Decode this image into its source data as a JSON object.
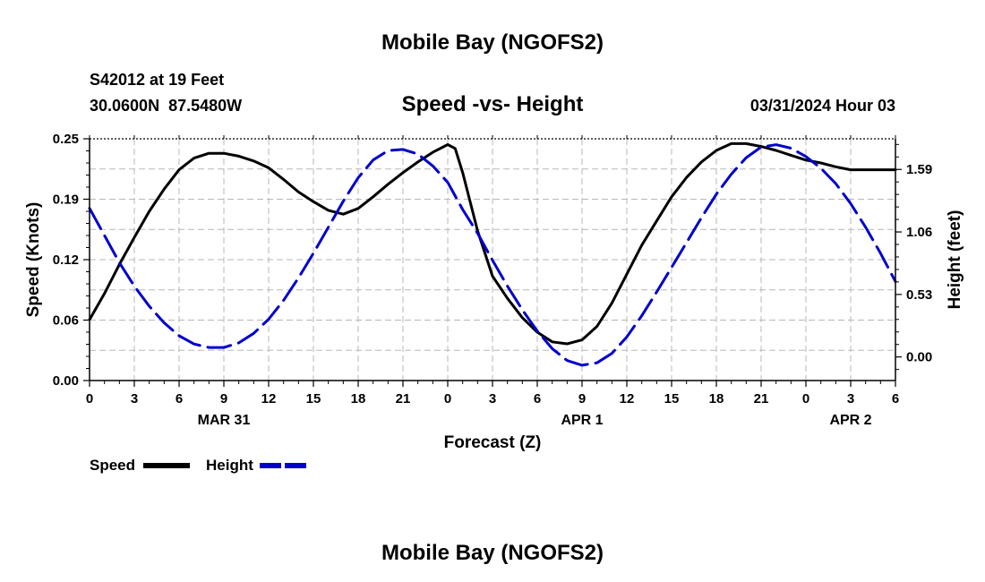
{
  "chart_data": {
    "type": "line",
    "title": "Mobile Bay (NGOFS2)",
    "subtitle": "Speed -vs- Height",
    "footer_title": "Mobile Bay (NGOFS2)",
    "station": "S42012 at 19 Feet",
    "coordinates": "30.0600N  87.5480W",
    "timestamp": "03/31/2024 Hour 03",
    "xlabel": "Forecast (Z)",
    "ylabel_left": "Speed (Knots)",
    "ylabel_right": "Height (feet)",
    "x_ticks": [
      "0",
      "3",
      "6",
      "9",
      "12",
      "15",
      "18",
      "21",
      "0",
      "3",
      "6",
      "9",
      "12",
      "15",
      "18",
      "21",
      "0",
      "3",
      "6"
    ],
    "date_labels": [
      {
        "label": "MAR 31",
        "hour_offset": 9
      },
      {
        "label": "APR 1",
        "hour_offset": 33
      },
      {
        "label": "APR 2",
        "hour_offset": 51
      }
    ],
    "xlim": [
      0,
      54
    ],
    "ylim_left": [
      0.0,
      0.25
    ],
    "y_ticks_left": [
      "0.00",
      "0.06",
      "0.12",
      "0.19",
      "0.25"
    ],
    "ylim_right": [
      -0.2,
      1.85
    ],
    "y_ticks_right": [
      {
        "label": "0.00",
        "value": 0.0
      },
      {
        "label": "0.53",
        "value": 0.53
      },
      {
        "label": "1.06",
        "value": 1.06
      },
      {
        "label": "1.59",
        "value": 1.59
      }
    ],
    "grid": true,
    "legend_position": "bottom-left",
    "series": [
      {
        "name": "Speed",
        "axis": "left",
        "color": "#000000",
        "style": "solid",
        "x": [
          0,
          1,
          2,
          3,
          4,
          5,
          6,
          7,
          8,
          9,
          10,
          11,
          12,
          13,
          14,
          15,
          16,
          17,
          18,
          19,
          20,
          21,
          22,
          23,
          24,
          24.5,
          25,
          26,
          27,
          28,
          29,
          30,
          31,
          32,
          33,
          34,
          35,
          36,
          37,
          38,
          39,
          40,
          41,
          42,
          43,
          44,
          45,
          46,
          47,
          48,
          49,
          50,
          51,
          52,
          53,
          54
        ],
        "values": [
          0.063,
          0.09,
          0.12,
          0.148,
          0.175,
          0.198,
          0.218,
          0.23,
          0.235,
          0.235,
          0.232,
          0.227,
          0.22,
          0.208,
          0.195,
          0.185,
          0.176,
          0.172,
          0.178,
          0.19,
          0.203,
          0.215,
          0.226,
          0.236,
          0.244,
          0.24,
          0.215,
          0.155,
          0.108,
          0.085,
          0.065,
          0.05,
          0.04,
          0.038,
          0.042,
          0.056,
          0.08,
          0.11,
          0.14,
          0.165,
          0.19,
          0.21,
          0.226,
          0.238,
          0.245,
          0.245,
          0.242,
          0.238,
          0.233,
          0.228,
          0.225,
          0.221,
          0.218,
          0.218,
          0.218,
          0.218
        ]
      },
      {
        "name": "Height",
        "axis": "right",
        "color": "#0000cc",
        "style": "dashed",
        "x": [
          0,
          1,
          2,
          3,
          4,
          5,
          6,
          7,
          8,
          9,
          10,
          11,
          12,
          13,
          14,
          15,
          16,
          17,
          18,
          19,
          20,
          21,
          22,
          23,
          24,
          25,
          26,
          27,
          28,
          29,
          30,
          31,
          32,
          33,
          34,
          35,
          36,
          37,
          38,
          39,
          40,
          41,
          42,
          43,
          44,
          45,
          46,
          47,
          48,
          49,
          50,
          51,
          52,
          53,
          54
        ],
        "values": [
          1.26,
          1.03,
          0.8,
          0.6,
          0.43,
          0.29,
          0.18,
          0.11,
          0.08,
          0.08,
          0.12,
          0.2,
          0.32,
          0.48,
          0.67,
          0.88,
          1.1,
          1.32,
          1.52,
          1.67,
          1.75,
          1.76,
          1.72,
          1.62,
          1.48,
          1.25,
          1.05,
          0.82,
          0.6,
          0.4,
          0.22,
          0.07,
          -0.03,
          -0.07,
          -0.05,
          0.03,
          0.17,
          0.35,
          0.55,
          0.76,
          0.97,
          1.18,
          1.38,
          1.55,
          1.69,
          1.78,
          1.8,
          1.77,
          1.7,
          1.6,
          1.47,
          1.3,
          1.1,
          0.88,
          0.64
        ]
      }
    ]
  }
}
